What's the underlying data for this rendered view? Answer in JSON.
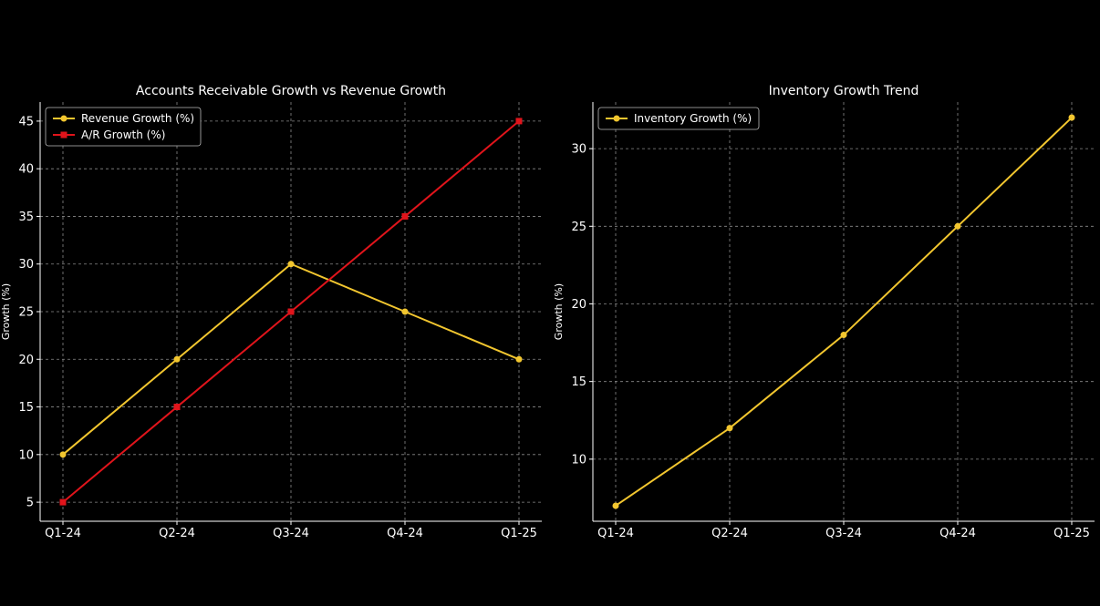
{
  "chart_data": [
    {
      "type": "line",
      "title": "Accounts Receivable Growth vs Revenue Growth",
      "xlabel": "",
      "ylabel": "Growth (%)",
      "categories": [
        "Q1-24",
        "Q2-24",
        "Q3-24",
        "Q4-24",
        "Q1-25"
      ],
      "ylim": [
        3,
        47
      ],
      "yticks": [
        5,
        10,
        15,
        20,
        25,
        30,
        35,
        40,
        45
      ],
      "grid": true,
      "legend": "top-left",
      "series": [
        {
          "name": "Revenue Growth (%)",
          "values": [
            10,
            20,
            30,
            25,
            20
          ],
          "color": "#f2c62f",
          "marker": "circle"
        },
        {
          "name": "A/R Growth (%)",
          "values": [
            5,
            15,
            25,
            35,
            45
          ],
          "color": "#e0141b",
          "marker": "square"
        }
      ]
    },
    {
      "type": "line",
      "title": "Inventory Growth Trend",
      "xlabel": "",
      "ylabel": "Growth (%)",
      "categories": [
        "Q1-24",
        "Q2-24",
        "Q3-24",
        "Q4-24",
        "Q1-25"
      ],
      "ylim": [
        6,
        33
      ],
      "yticks": [
        10,
        15,
        20,
        25,
        30
      ],
      "grid": true,
      "legend": "top-left",
      "series": [
        {
          "name": "Inventory Growth (%)",
          "values": [
            7,
            12,
            18,
            25,
            32
          ],
          "color": "#f2c62f",
          "marker": "circle"
        }
      ]
    }
  ]
}
